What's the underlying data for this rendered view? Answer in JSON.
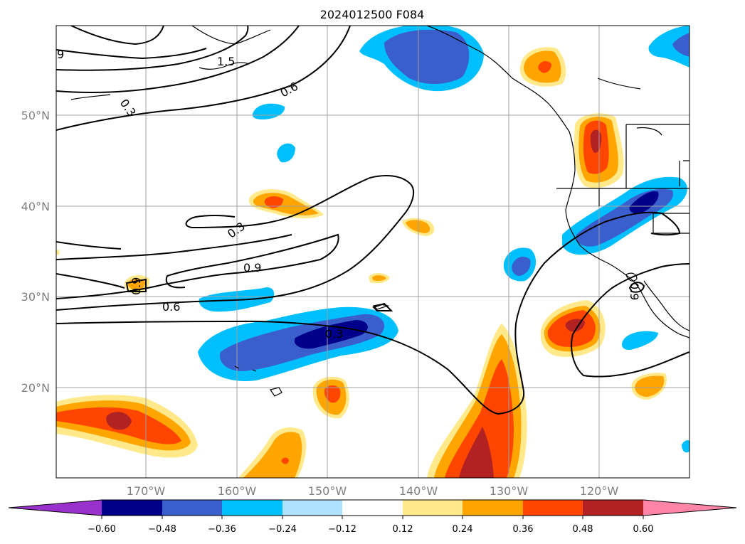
{
  "title": "2024012500 F084",
  "map": {
    "lon_ticks": [
      "170°W",
      "160°W",
      "150°W",
      "140°W",
      "130°W",
      "120°W"
    ],
    "lat_ticks": [
      "50°N",
      "40°N",
      "30°N",
      "20°N"
    ]
  },
  "contour_labels": [
    "9",
    "1.5",
    "0.3",
    "0.6",
    "0.3",
    "0.9",
    "0.6",
    "0.9",
    "0.3",
    "0.9"
  ],
  "colorbar": {
    "ticks": [
      "−0.60",
      "−0.48",
      "−0.36",
      "−0.24",
      "−0.12",
      "0.12",
      "0.24",
      "0.36",
      "0.48",
      "0.60"
    ],
    "colors": [
      "#9932cc",
      "#00008b",
      "#3a5fcd",
      "#00bfff",
      "#b0e2ff",
      "#ffffff",
      "#ffe98a",
      "#ffa500",
      "#ff4500",
      "#b22222",
      "#ff85a8"
    ]
  }
}
